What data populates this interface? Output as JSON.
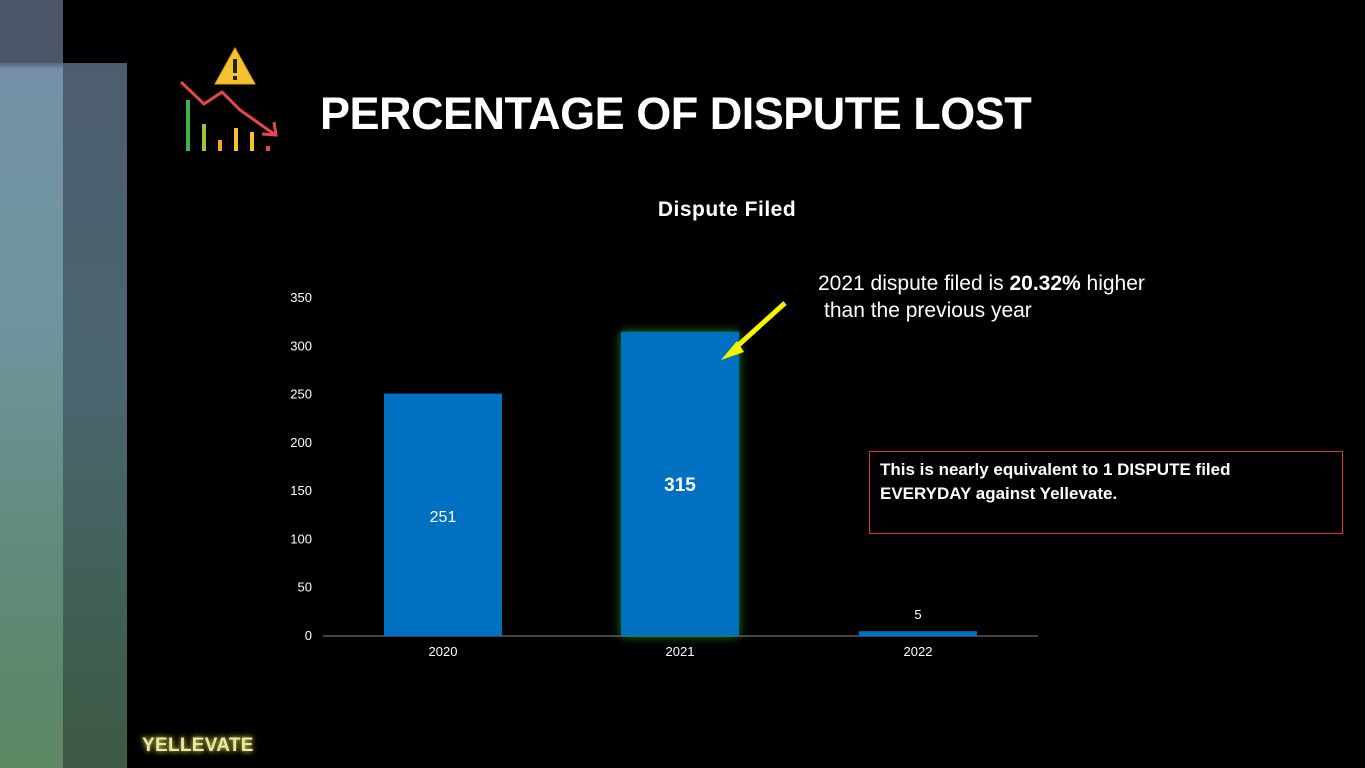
{
  "slide": {
    "title": "PERCENTAGE OF DISPUTE LOST",
    "brand": "YELLEVATE",
    "annotation": {
      "line1_prefix": "2021 dispute filed is ",
      "line1_bold": "20.32%",
      "line1_suffix": " higher",
      "line2": "than the previous year"
    },
    "note": {
      "line1": "This is nearly equivalent to 1 DISPUTE filed",
      "line2": "EVERYDAY against Yellevate."
    },
    "colors": {
      "bar": "#0070c0",
      "highlight_glow": "#3cff3c",
      "arrow": "#f5f500",
      "note_border": "#d33333"
    },
    "icon": "chart-decline-warning-icon"
  },
  "chart_data": {
    "type": "bar",
    "title": "Dispute Filed",
    "categories": [
      "2020",
      "2021",
      "2022"
    ],
    "values": [
      251,
      315,
      5
    ],
    "data_labels": [
      "251",
      "315",
      "5"
    ],
    "highlighted_category": "2021",
    "ylim": [
      0,
      350
    ],
    "yticks": [
      0,
      50,
      100,
      150,
      200,
      250,
      300,
      350
    ],
    "grid": false
  }
}
